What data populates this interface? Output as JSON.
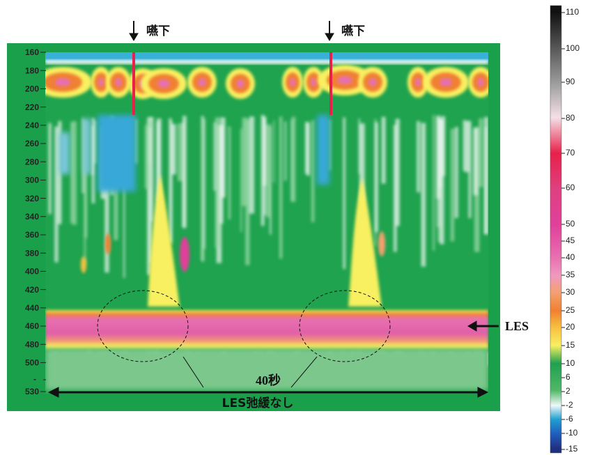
{
  "annotations": {
    "swallow_1": "嚥下",
    "swallow_2": "嚥下",
    "les": "LES",
    "duration": "40秒",
    "note": "LES弛緩なし"
  },
  "y_axis": {
    "labels": [
      160,
      180,
      200,
      220,
      240,
      260,
      280,
      300,
      320,
      340,
      360,
      380,
      400,
      420,
      440,
      460,
      480,
      500,
      530
    ]
  },
  "colorbar": {
    "labels": [
      110,
      100,
      90,
      80,
      70,
      60,
      50,
      45,
      40,
      35,
      30,
      25,
      20,
      15,
      10,
      6,
      2,
      -2,
      -6,
      -10,
      -15
    ]
  }
}
